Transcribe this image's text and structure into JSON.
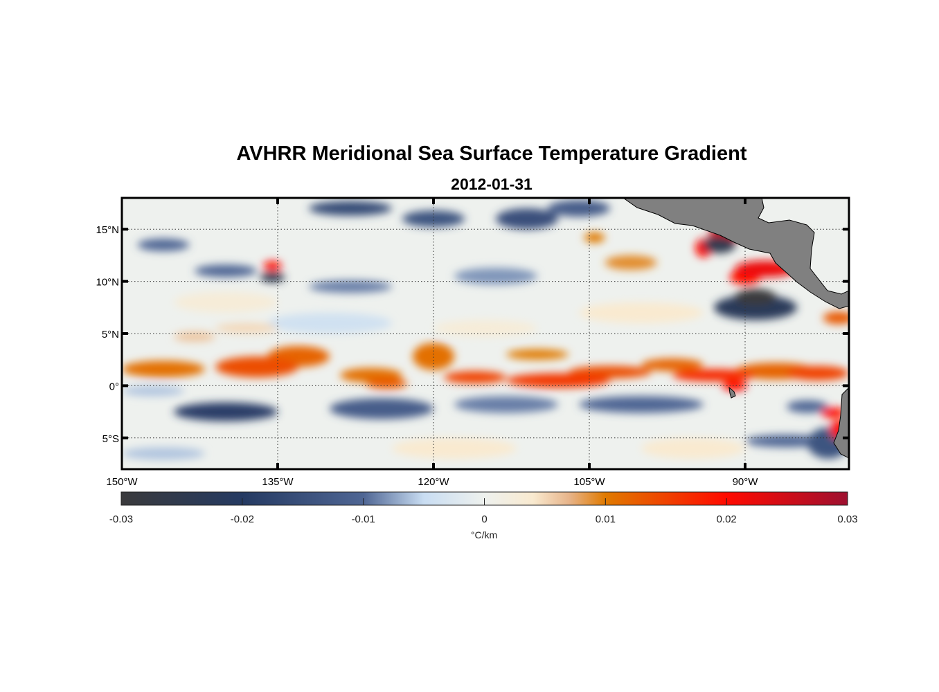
{
  "title": "AVHRR Meridional Sea Surface Temperature Gradient",
  "subtitle": "2012-01-31",
  "chart_data": {
    "type": "heatmap",
    "title": "AVHRR Meridional Sea Surface Temperature Gradient",
    "subtitle": "2012-01-31",
    "lon_range": [
      -150,
      -80
    ],
    "lat_range": [
      -8,
      18
    ],
    "lon_ticks": [
      {
        "value": -150,
        "label": "150°W"
      },
      {
        "value": -135,
        "label": "135°W"
      },
      {
        "value": -120,
        "label": "120°W"
      },
      {
        "value": -105,
        "label": "105°W"
      },
      {
        "value": -90,
        "label": "90°W"
      }
    ],
    "lat_ticks": [
      {
        "value": 15,
        "label": "15°N"
      },
      {
        "value": 10,
        "label": "10°N"
      },
      {
        "value": 5,
        "label": "5°N"
      },
      {
        "value": 0,
        "label": "0°"
      },
      {
        "value": -5,
        "label": "5°S"
      }
    ],
    "grid": true,
    "colorbar": {
      "range": [
        -0.03,
        0.03
      ],
      "ticks": [
        "-0.03",
        "-0.02",
        "-0.01",
        "0",
        "0.01",
        "0.02",
        "0.03"
      ],
      "label": "°C/km",
      "placement": "bottom",
      "stops": [
        [
          -0.03,
          "#3a3a3c"
        ],
        [
          -0.02,
          "#253a62"
        ],
        [
          -0.01,
          "#4f6694"
        ],
        [
          -0.005,
          "#c9ddf2"
        ],
        [
          0,
          "#eef1ee"
        ],
        [
          0.004,
          "#f9ead0"
        ],
        [
          0.007,
          "#e7b48a"
        ],
        [
          0.01,
          "#e07a00"
        ],
        [
          0.02,
          "#ff0a00"
        ],
        [
          0.03,
          "#9e1030"
        ]
      ]
    },
    "features": [
      [
        -146,
        1.6,
        4,
        0.8,
        0.011
      ],
      [
        -137,
        1.8,
        4,
        1.0,
        0.014
      ],
      [
        -133,
        2.8,
        3,
        1.0,
        0.012
      ],
      [
        -126,
        1.0,
        3,
        0.7,
        0.011
      ],
      [
        -124.5,
        0.2,
        2,
        0.5,
        0.013
      ],
      [
        -120,
        2.8,
        2,
        1.3,
        0.011
      ],
      [
        -116,
        0.8,
        3,
        0.6,
        0.015
      ],
      [
        -108,
        0.5,
        5,
        0.7,
        0.016
      ],
      [
        -103,
        1.3,
        4,
        0.6,
        0.014
      ],
      [
        -110,
        3.0,
        3,
        0.5,
        0.01
      ],
      [
        -97,
        2.0,
        3,
        0.6,
        0.012
      ],
      [
        -93,
        1.0,
        4,
        0.6,
        0.017
      ],
      [
        -87,
        1.4,
        4,
        0.8,
        0.012
      ],
      [
        -83,
        1.2,
        3,
        0.7,
        0.015
      ],
      [
        -81,
        6.5,
        1.5,
        0.6,
        0.013
      ],
      [
        -94,
        13.2,
        0.8,
        0.9,
        0.02
      ],
      [
        -92,
        14.5,
        1.5,
        0.8,
        0.025
      ],
      [
        -88,
        11.2,
        3,
        0.8,
        0.022
      ],
      [
        -90,
        10.4,
        1.5,
        0.7,
        0.02
      ],
      [
        -101,
        11.8,
        2.5,
        0.7,
        0.009
      ],
      [
        -104.5,
        14.2,
        1,
        0.5,
        0.01
      ],
      [
        -81.5,
        -2.6,
        1.2,
        0.5,
        0.02
      ],
      [
        -81,
        -4.2,
        0.8,
        0.9,
        0.02
      ],
      [
        -135.5,
        11.5,
        0.9,
        0.45,
        0.02
      ],
      [
        -91,
        0.0,
        1.2,
        0.5,
        0.02
      ],
      [
        -140,
        -2.5,
        5,
        0.9,
        -0.019
      ],
      [
        -125,
        -2.2,
        5,
        1.0,
        -0.012
      ],
      [
        -120,
        16,
        3,
        0.8,
        -0.014
      ],
      [
        -128,
        17,
        4,
        0.7,
        -0.016
      ],
      [
        -111,
        16,
        3,
        1.0,
        -0.015
      ],
      [
        -106,
        17,
        3,
        0.8,
        -0.012
      ],
      [
        -135.5,
        10.4,
        1.2,
        0.5,
        -0.025
      ],
      [
        -140,
        11,
        3,
        0.6,
        -0.01
      ],
      [
        -146,
        13.5,
        2.5,
        0.6,
        -0.01
      ],
      [
        -128,
        9.5,
        4,
        0.6,
        -0.009
      ],
      [
        -114,
        10.5,
        4,
        0.8,
        -0.008
      ],
      [
        -92.5,
        13.5,
        1.6,
        0.8,
        -0.025
      ],
      [
        -89,
        7.5,
        4,
        1.2,
        -0.022
      ],
      [
        -89,
        8.5,
        2,
        0.8,
        -0.03
      ],
      [
        -100,
        -1.8,
        6,
        0.8,
        -0.01
      ],
      [
        -113,
        -1.8,
        5,
        0.8,
        -0.009
      ],
      [
        -86,
        -5.3,
        4,
        0.6,
        -0.01
      ],
      [
        -82,
        -5.5,
        2,
        1.5,
        -0.014
      ],
      [
        -84,
        -2.0,
        2,
        0.6,
        -0.01
      ],
      [
        -146,
        -6.5,
        4,
        0.6,
        -0.006
      ],
      [
        -147,
        -0.5,
        3,
        0.5,
        -0.006
      ],
      [
        -115,
        5.5,
        5,
        0.8,
        0.003
      ],
      [
        -130,
        6,
        6,
        1.0,
        -0.004
      ],
      [
        -100,
        7,
        6,
        1.0,
        0.004
      ],
      [
        -140,
        8,
        5,
        1,
        0.003
      ],
      [
        -118,
        -6,
        6,
        1,
        0.004
      ],
      [
        -95,
        -6,
        5,
        1,
        0.004
      ],
      [
        -143,
        4.7,
        2,
        0.5,
        0.006
      ],
      [
        -138,
        5.5,
        3,
        0.5,
        0.005
      ]
    ]
  }
}
